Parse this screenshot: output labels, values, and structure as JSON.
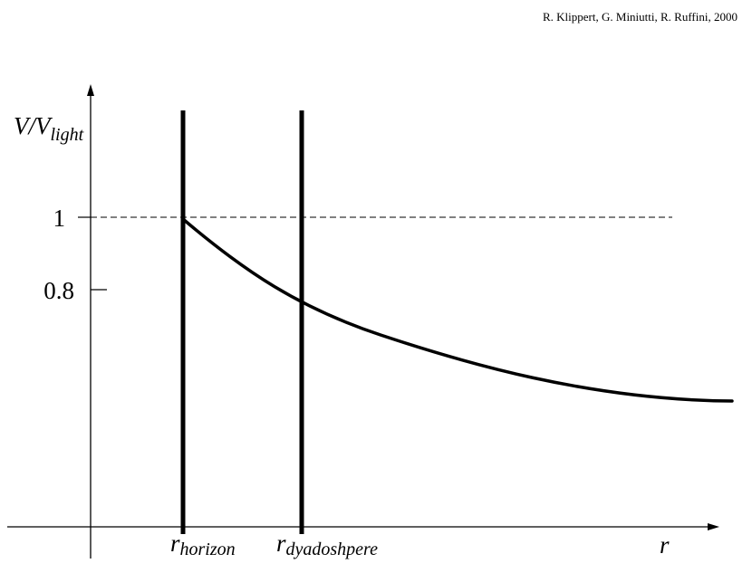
{
  "credit": "R. Klippert, G. Miniutti, R. Ruffini, 2000",
  "y_axis": {
    "label_main": "V/V",
    "label_sub": "light",
    "ticks": [
      {
        "value": 1,
        "label": "1"
      },
      {
        "value": 0.8,
        "label": "0.8"
      }
    ]
  },
  "x_axis": {
    "label": "r"
  },
  "markers": [
    {
      "id": "horizon",
      "label_main": "r",
      "label_sub": "horizon"
    },
    {
      "id": "dyadosphere",
      "label_main": "r",
      "label_sub": "dyadoshpere"
    }
  ],
  "reference_line": {
    "value": 1,
    "style": "dashed"
  },
  "curve": {
    "description_values": "monotonically decreasing from 1 at r_horizon through ~0.78 at r_dyadosphere toward an asymptote",
    "start_value": 1,
    "value_at_dyadosphere": 0.78
  },
  "colors": {
    "ink": "#000000",
    "background": "#ffffff"
  }
}
